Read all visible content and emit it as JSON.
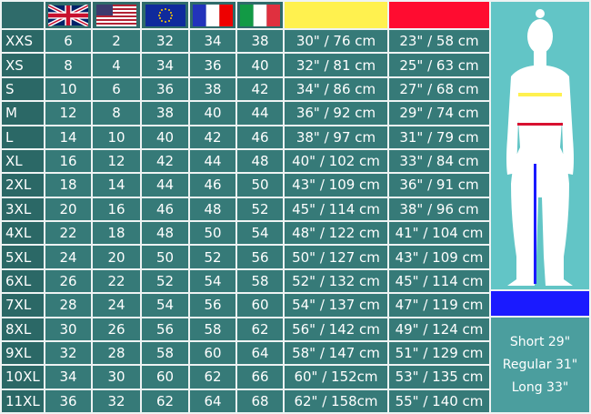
{
  "colors": {
    "cell": "#367a78",
    "hip": "#fff14f",
    "waist": "#ff0c30",
    "inseam": "#1a1aff",
    "panel": "#62c5c6"
  },
  "header_icons": [
    "uk-flag-icon",
    "us-flag-icon",
    "eu-flag-icon",
    "france-flag-icon",
    "italy-flag-icon",
    "hip-color-swatch",
    "waist-color-swatch"
  ],
  "rows": [
    [
      "XXS",
      "6",
      "2",
      "32",
      "34",
      "38",
      "30\" / 76 cm",
      "23\" / 58 cm"
    ],
    [
      "XS",
      "8",
      "4",
      "34",
      "36",
      "40",
      "32\" / 81 cm",
      "25\" / 63 cm"
    ],
    [
      "S",
      "10",
      "6",
      "36",
      "38",
      "42",
      "34\" / 86 cm",
      "27\" / 68 cm"
    ],
    [
      "M",
      "12",
      "8",
      "38",
      "40",
      "44",
      "36\" / 92 cm",
      "29\" / 74 cm"
    ],
    [
      "L",
      "14",
      "10",
      "40",
      "42",
      "46",
      "38\" / 97 cm",
      "31\" / 79 cm"
    ],
    [
      "XL",
      "16",
      "12",
      "42",
      "44",
      "48",
      "40\" / 102 cm",
      "33\" / 84 cm"
    ],
    [
      "2XL",
      "18",
      "14",
      "44",
      "46",
      "50",
      "43\" / 109 cm",
      "36\" / 91 cm"
    ],
    [
      "3XL",
      "20",
      "16",
      "46",
      "48",
      "52",
      "45\" / 114 cm",
      "38\" / 96 cm"
    ],
    [
      "4XL",
      "22",
      "18",
      "48",
      "50",
      "54",
      "48\" / 122 cm",
      "41\" / 104 cm"
    ],
    [
      "5XL",
      "24",
      "20",
      "50",
      "52",
      "56",
      "50\" / 127 cm",
      "43\" / 109 cm"
    ],
    [
      "6XL",
      "26",
      "22",
      "52",
      "54",
      "58",
      "52\" / 132 cm",
      "45\" / 114 cm"
    ],
    [
      "7XL",
      "28",
      "24",
      "54",
      "56",
      "60",
      "54\" / 137 cm",
      "47\" / 119 cm"
    ],
    [
      "8XL",
      "30",
      "26",
      "56",
      "58",
      "62",
      "56\" / 142 cm",
      "49\" / 124 cm"
    ],
    [
      "9XL",
      "32",
      "28",
      "58",
      "60",
      "64",
      "58\" / 147 cm",
      "51\" / 129 cm"
    ],
    [
      "10XL",
      "34",
      "30",
      "60",
      "62",
      "66",
      "60\" / 152cm",
      "53\" / 135 cm"
    ],
    [
      "11XL",
      "36",
      "32",
      "62",
      "64",
      "68",
      "62\" / 158cm",
      "55\" / 140 cm"
    ]
  ],
  "inseam": {
    "short": "Short 29\"",
    "regular": "Regular 31\"",
    "long": "Long 33\""
  }
}
